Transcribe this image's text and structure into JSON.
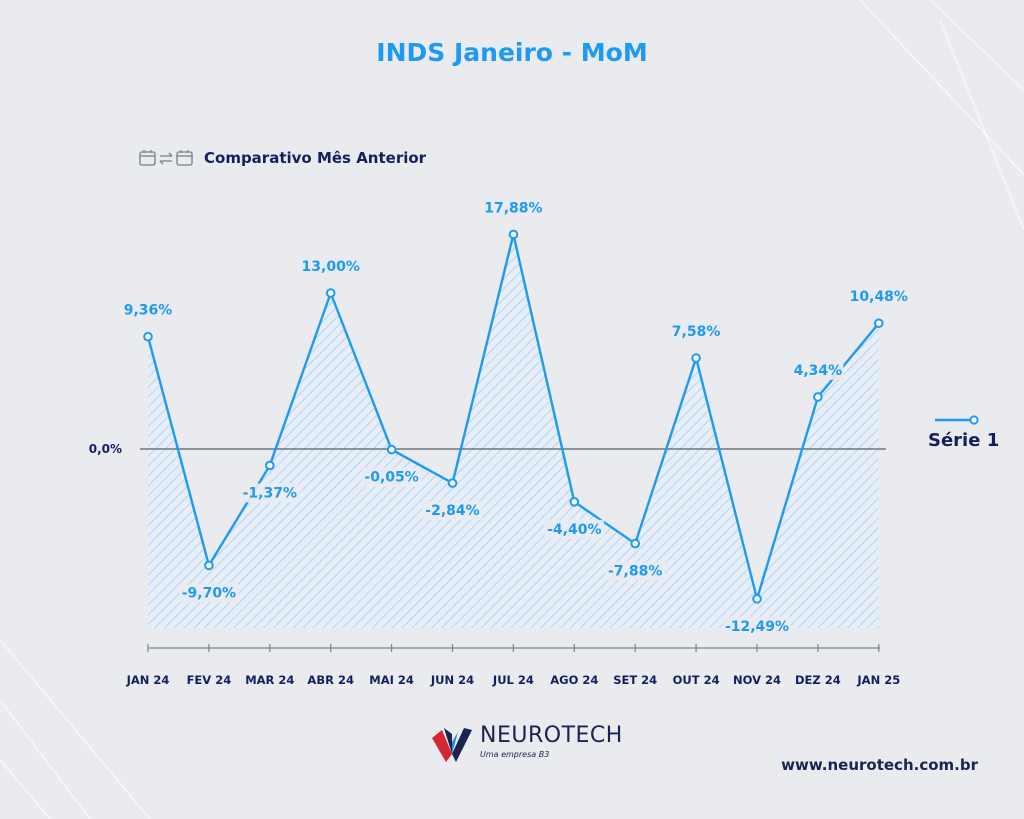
{
  "header": {
    "title": "INDS Janeiro - MoM"
  },
  "subtitle": {
    "label": "Comparativo Mês Anterior",
    "icon": "calendar-compare-icon"
  },
  "legend": {
    "label": "Série 1"
  },
  "footer": {
    "brand": "NEUROTECH",
    "tagline": "Uma empresa B3",
    "website": "www.neurotech.com.br"
  },
  "colors": {
    "accent": "#1e9af3",
    "navy": "#14205e",
    "background": "#e9ebef",
    "zero_line": "#5a5e66"
  },
  "chart_data": {
    "type": "area",
    "categories": [
      "JAN 24",
      "FEV 24",
      "MAR 24",
      "ABR 24",
      "MAI 24",
      "JUN 24",
      "JUL 24",
      "AGO 24",
      "SET 24",
      "OUT 24",
      "NOV 24",
      "DEZ 24",
      "JAN 25"
    ],
    "series": [
      {
        "name": "Série 1",
        "values": [
          9.36,
          -9.7,
          -1.37,
          13.0,
          -0.05,
          -2.84,
          17.88,
          -4.4,
          -7.88,
          7.58,
          -12.49,
          4.34,
          10.48
        ],
        "labels": [
          "9,36%",
          "-9,70%",
          "-1,37%",
          "13,00%",
          "-0,05%",
          "-2,84%",
          "17,88%",
          "-4,40%",
          "-7,88%",
          "7,58%",
          "-12,49%",
          "4,34%",
          "10,48%"
        ]
      }
    ],
    "zero_label": "0,0%",
    "fill_pattern": "diagonal-hatch",
    "grid": false,
    "legend_position": "right"
  }
}
